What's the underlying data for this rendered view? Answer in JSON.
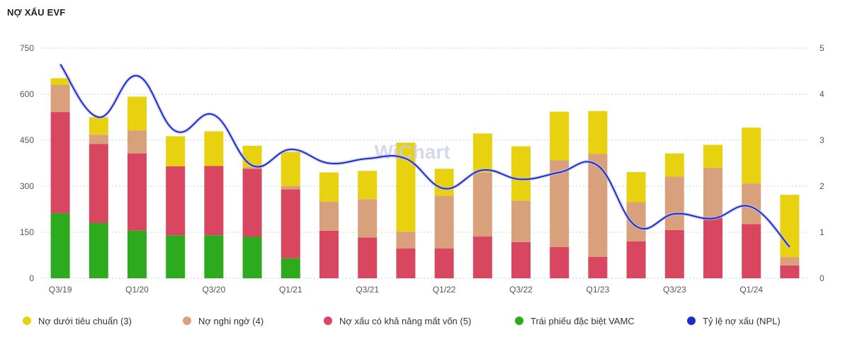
{
  "title": "NỢ XẤU EVF",
  "watermark": "WiChart",
  "chart_data": {
    "type": "bar",
    "stacked": true,
    "title": "NỢ XẤU EVF",
    "categories": [
      "Q3/19",
      "Q4/19",
      "Q1/20",
      "Q2/20",
      "Q3/20",
      "Q4/20",
      "Q1/21",
      "Q2/21",
      "Q3/21",
      "Q4/21",
      "Q1/22",
      "Q2/22",
      "Q3/22",
      "Q4/22",
      "Q1/23",
      "Q2/23",
      "Q3/23",
      "Q4/23",
      "Q1/24",
      "Q2/24"
    ],
    "x_tick_labels": [
      "Q3/19",
      "",
      "Q1/20",
      "",
      "Q3/20",
      "",
      "Q1/21",
      "",
      "Q3/21",
      "",
      "Q1/22",
      "",
      "Q3/22",
      "",
      "Q1/23",
      "",
      "Q3/23",
      "",
      "Q1/24",
      ""
    ],
    "series": [
      {
        "name": "Trái phiếu đặc biệt VAMC",
        "color": "#2eaa1e",
        "values": [
          212,
          180,
          155,
          140,
          140,
          135,
          65,
          0,
          0,
          0,
          0,
          0,
          0,
          0,
          0,
          0,
          0,
          0,
          0,
          0
        ]
      },
      {
        "name": "Nợ xấu có khả năng mất vốn (5)",
        "color": "#d9465f",
        "values": [
          330,
          258,
          252,
          225,
          226,
          222,
          225,
          155,
          133,
          97,
          97,
          136,
          118,
          102,
          70,
          120,
          157,
          197,
          177,
          42
        ]
      },
      {
        "name": "Nợ nghi ngờ (4)",
        "color": "#d9a07c",
        "values": [
          88,
          30,
          75,
          0,
          0,
          5,
          10,
          95,
          125,
          55,
          172,
          208,
          135,
          283,
          335,
          128,
          175,
          163,
          132,
          27
        ]
      },
      {
        "name": "Nợ dưới tiêu chuẩn (3)",
        "color": "#e8d10e",
        "values": [
          22,
          57,
          110,
          98,
          113,
          70,
          112,
          95,
          92,
          290,
          88,
          128,
          177,
          158,
          140,
          98,
          75,
          75,
          182,
          203
        ]
      }
    ],
    "line_series": {
      "name": "Tỷ lệ nợ xấu (NPL)",
      "color": "#1e2ec8",
      "axis": "right",
      "values": [
        4.65,
        3.5,
        4.4,
        3.2,
        3.55,
        2.45,
        2.8,
        2.5,
        2.6,
        2.6,
        1.95,
        2.35,
        2.15,
        2.3,
        2.45,
        1.13,
        1.4,
        1.3,
        1.55,
        0.68
      ]
    },
    "y_left": {
      "min": 0,
      "max": 750,
      "ticks": [
        "0",
        "150",
        "300",
        "450",
        "600",
        "750"
      ]
    },
    "y_right": {
      "min": 0,
      "max": 5,
      "ticks": [
        "0",
        "1",
        "2",
        "3",
        "4",
        "5"
      ]
    },
    "grid": true,
    "legend_position": "bottom"
  },
  "legend": [
    {
      "label": "Nợ dưới tiêu chuẩn (3)",
      "color": "#e8d10e"
    },
    {
      "label": "Nợ nghi ngờ (4)",
      "color": "#d9a07c"
    },
    {
      "label": "Nợ xấu có khả năng mất vốn (5)",
      "color": "#d9465f"
    },
    {
      "label": "Trái phiếu đặc biệt VAMC",
      "color": "#2eaa1e"
    },
    {
      "label": "Tỷ lệ nợ xấu (NPL)",
      "color": "#1e2ec8"
    }
  ]
}
